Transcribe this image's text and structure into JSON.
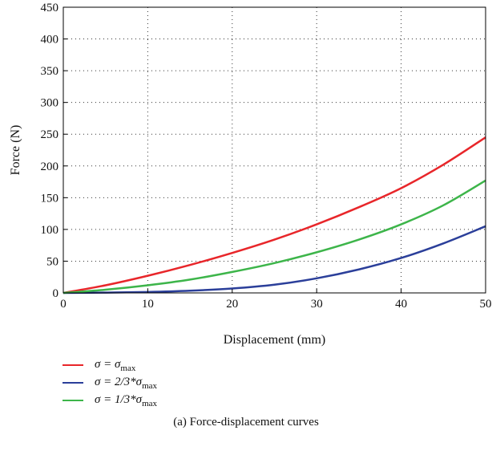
{
  "chart_data": {
    "type": "line",
    "title": "",
    "xlabel": "Displacement (mm)",
    "ylabel": "Force (N)",
    "xlim": [
      0,
      50
    ],
    "ylim": [
      0,
      450
    ],
    "xticks": [
      0,
      10,
      20,
      30,
      40,
      50
    ],
    "yticks": [
      0,
      50,
      100,
      150,
      200,
      250,
      300,
      350,
      400,
      450
    ],
    "grid": true,
    "legend_position": "bottom-left",
    "x": [
      0,
      5,
      10,
      15,
      20,
      25,
      30,
      35,
      40,
      45,
      50
    ],
    "series": [
      {
        "name": "σ = σmax",
        "legend_main": "σ = σ",
        "legend_sub": "max",
        "color": "#e8262a",
        "values": [
          0,
          12,
          27,
          44,
          63,
          84,
          108,
          135,
          165,
          202,
          245
        ]
      },
      {
        "name": "σ = 2/3*σmax",
        "legend_main": "σ = 2/3*σ",
        "legend_sub": "max",
        "color": "#2b3f9a",
        "values": [
          0,
          0.5,
          1.5,
          3.5,
          7,
          13,
          23,
          37,
          55,
          78,
          105
        ]
      },
      {
        "name": "σ = 1/3*σmax",
        "legend_main": "σ = 1/3*σ",
        "legend_sub": "max",
        "color": "#3db54a",
        "values": [
          0,
          5,
          12,
          21,
          33,
          47,
          64,
          84,
          108,
          138,
          177
        ]
      }
    ]
  },
  "caption": "(a) Force-displacement curves"
}
